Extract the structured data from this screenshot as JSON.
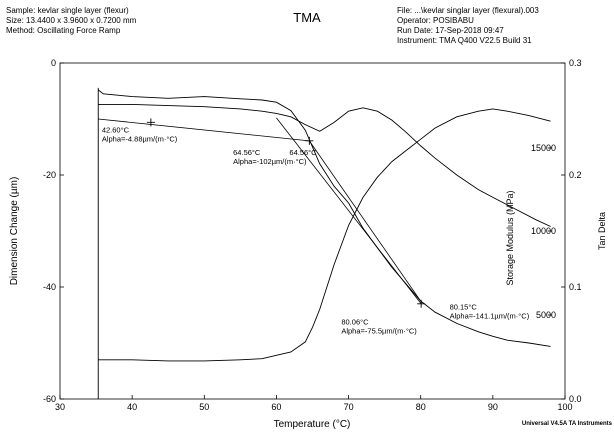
{
  "header": {
    "sample": "Sample: kevlar single layer  (flexur)",
    "size": "Size:  13.4400 x 3.9600 x 0.7200 mm",
    "method": "Method: Oscillating Force Ramp",
    "file": "File: ...\\kevlar singlar layer (flexural).003",
    "operator": "Operator: POSIBABU",
    "run_date": "Run Date: 17-Sep-2018 09:47",
    "instrument": "Instrument: TMA Q400 V22.5 Build 31"
  },
  "footer": "Universal V4.5A TA Instruments",
  "chart_data": {
    "type": "line",
    "title": "TMA",
    "xlabel": "Temperature (°C)",
    "xlim": [
      30,
      100
    ],
    "xticks": [
      30,
      40,
      50,
      60,
      70,
      80,
      90,
      100
    ],
    "axes": {
      "left": {
        "label": "Dimension Change (µm)",
        "lim": [
          -60,
          0
        ],
        "ticks": [
          -60,
          -40,
          -20,
          0
        ]
      },
      "right_outer": {
        "label": "Tan Delta",
        "lim": [
          0.0,
          0.3
        ],
        "ticks": [
          0.0,
          0.1,
          0.2,
          0.3
        ]
      },
      "right_inner": {
        "label": "Storage Modulus (MPa)",
        "ticks": [
          5000,
          10000,
          15000
        ]
      }
    },
    "grid": false,
    "series": [
      {
        "axis": "left",
        "x": [
          35.3,
          36,
          40,
          45,
          50,
          55,
          58,
          60,
          62,
          64,
          66,
          68,
          70,
          72,
          74,
          76,
          78,
          80,
          82,
          85,
          88,
          90,
          92,
          95,
          98
        ],
        "y": [
          -4.8,
          -5.5,
          -6.0,
          -6.3,
          -6.0,
          -6.4,
          -6.6,
          -7.0,
          -8.5,
          -12.0,
          -18.0,
          -22.0,
          -25.0,
          -29.5,
          -33.0,
          -36.5,
          -39.5,
          -42.5,
          -44.5,
          -46.5,
          -48.0,
          -48.8,
          -49.5,
          -50.0,
          -50.6
        ]
      },
      {
        "axis": "right_outer",
        "x": [
          35.3,
          40,
          45,
          50,
          55,
          58,
          60,
          62,
          64,
          66,
          68,
          70,
          72,
          74,
          76,
          78,
          80,
          82,
          85,
          88,
          90,
          93,
          96,
          98
        ],
        "y": [
          0.263,
          0.263,
          0.262,
          0.261,
          0.259,
          0.257,
          0.255,
          0.252,
          0.245,
          0.239,
          0.247,
          0.257,
          0.26,
          0.257,
          0.249,
          0.238,
          0.226,
          0.215,
          0.2,
          0.187,
          0.18,
          0.17,
          0.16,
          0.154
        ]
      },
      {
        "axis": "right_outer",
        "x": [
          35.3,
          40,
          45,
          50,
          55,
          58,
          60,
          62,
          64,
          65,
          66,
          67,
          68,
          70,
          72,
          74,
          76,
          78,
          80,
          82,
          85,
          88,
          90,
          92,
          95,
          98
        ],
        "y": [
          0.035,
          0.035,
          0.034,
          0.034,
          0.035,
          0.036,
          0.039,
          0.042,
          0.051,
          0.064,
          0.08,
          0.1,
          0.12,
          0.155,
          0.18,
          0.198,
          0.212,
          0.222,
          0.232,
          0.242,
          0.252,
          0.257,
          0.259,
          0.257,
          0.253,
          0.248
        ]
      }
    ],
    "tangent_lines": [
      {
        "from": [
          35.3,
          -10.0
        ],
        "to": [
          64.56,
          -13.9
        ]
      },
      {
        "from": [
          60.0,
          -9.8
        ],
        "to": [
          80.06,
          -43.0
        ]
      },
      {
        "from": [
          64.56,
          -13.9
        ],
        "to": [
          80.15,
          -42.8
        ]
      }
    ],
    "markers": [
      {
        "x": 42.6,
        "y": -10.6
      },
      {
        "x": 64.56,
        "y": -13.9
      },
      {
        "x": 80.06,
        "y": -43.0
      }
    ],
    "annotations": [
      {
        "x": 35.8,
        "y": -12.4,
        "lines": [
          "42.60°C",
          "Alpha=-4.88µm/(m·°C)"
        ]
      },
      {
        "x": 54.0,
        "y": -16.4,
        "lines": [
          "64.56°C",
          "Alpha=-102µm/(m·°C)"
        ]
      },
      {
        "x": 61.8,
        "y": -16.4,
        "lines": [
          "64.56°C"
        ]
      },
      {
        "x": 69.0,
        "y": -46.7,
        "lines": [
          "80.06°C",
          "Alpha=-75.5µm/(m·°C)"
        ]
      },
      {
        "x": 84.0,
        "y": -44.0,
        "lines": [
          "80.15°C",
          "Alpha=-141.1µm/(m·°C)"
        ]
      }
    ]
  }
}
